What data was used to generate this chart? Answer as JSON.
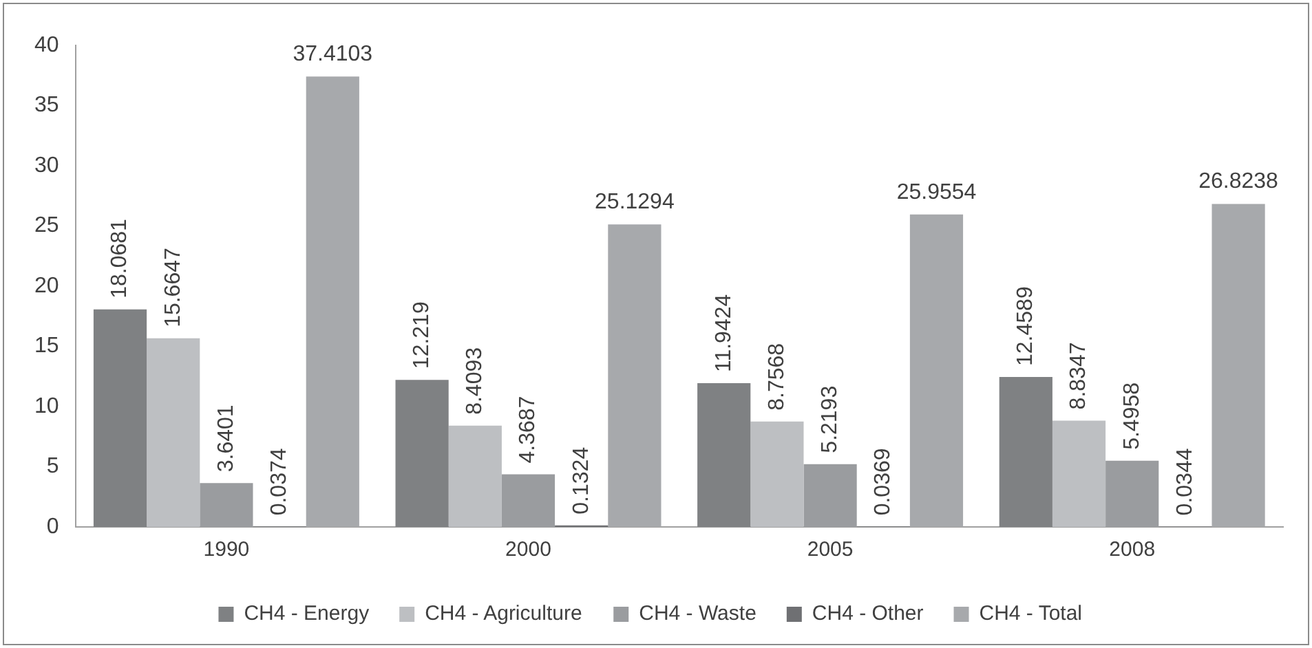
{
  "chart_data": {
    "type": "bar",
    "categories": [
      "1990",
      "2000",
      "2005",
      "2008"
    ],
    "series": [
      {
        "name": "CH4 - Energy",
        "color": "#7f8183",
        "values": [
          18.0681,
          12.219,
          11.9424,
          12.4589
        ]
      },
      {
        "name": "CH4 - Agriculture",
        "color": "#bdbfc2",
        "values": [
          15.6647,
          8.4093,
          8.7568,
          8.8347
        ]
      },
      {
        "name": "CH4 - Waste",
        "color": "#9a9c9f",
        "values": [
          3.6401,
          4.3687,
          5.2193,
          5.4958
        ]
      },
      {
        "name": "CH4 - Other",
        "color": "#6f7073",
        "values": [
          0.0374,
          0.1324,
          0.0369,
          0.0344
        ]
      },
      {
        "name": "CH4 - Total",
        "color": "#a7a9ac",
        "values": [
          37.4103,
          25.1294,
          25.9554,
          26.8238
        ]
      }
    ],
    "ylim": [
      0,
      40
    ],
    "yticks": [
      0,
      5,
      10,
      15,
      20,
      25,
      30,
      35,
      40
    ],
    "grid": false,
    "legend": "bottom",
    "data_labels": true
  }
}
